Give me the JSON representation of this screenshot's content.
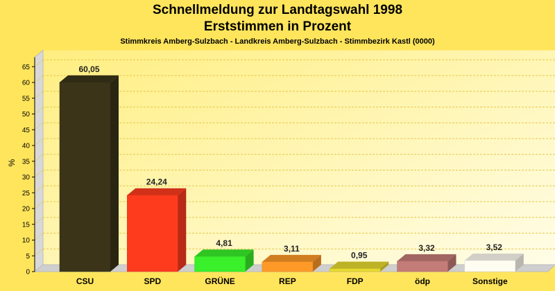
{
  "header": {
    "title_line1": "Schnellmeldung zur Landtagswahl 1998",
    "title_line2": "Erststimmen in Prozent",
    "subtitle": "Stimmkreis Amberg-Sulzbach - Landkreis Amberg-Sulzbach - Stimmbezirk Kastl (0000)"
  },
  "colors": {
    "background": "#FFE55C",
    "plot_background_light": "#FFFDE8",
    "CSU": "#3B3418",
    "SPD": "#FF3B1E",
    "GRUENE": "#39F02A",
    "REP": "#FF9A28",
    "FDP": "#E8DA2E",
    "oedp": "#C47C78",
    "Sonstige": "#FFFDF2"
  },
  "chart_data": {
    "type": "bar",
    "title": "",
    "xlabel": "",
    "ylabel": "%",
    "ylim": [
      0,
      68
    ],
    "yticks": [
      0,
      5,
      10,
      15,
      20,
      25,
      30,
      35,
      40,
      45,
      50,
      55,
      60,
      65
    ],
    "categories": [
      "CSU",
      "SPD",
      "GRÜNE",
      "REP",
      "FDP",
      "ödp",
      "Sonstige"
    ],
    "values": [
      60.05,
      24.24,
      4.81,
      3.11,
      0.95,
      3.32,
      3.52
    ],
    "value_labels": [
      "60,05",
      "24,24",
      "4,81",
      "3,11",
      "0,95",
      "3,32",
      "3,52"
    ],
    "color_keys": [
      "CSU",
      "SPD",
      "GRUENE",
      "REP",
      "FDP",
      "oedp",
      "Sonstige"
    ],
    "grid": true,
    "style": "3d"
  }
}
